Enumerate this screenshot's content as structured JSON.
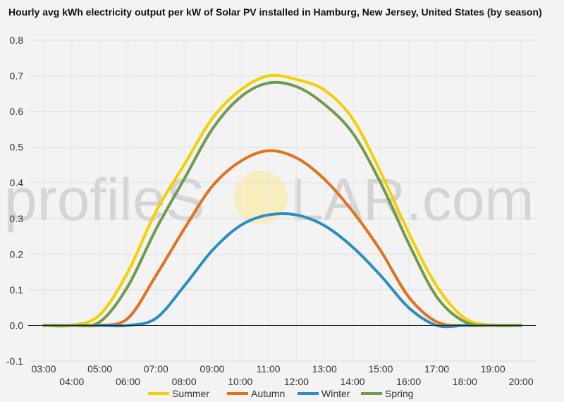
{
  "chart_data": {
    "type": "line",
    "title": "Hourly avg kWh electricity output per kW of Solar PV installed in Hamburg, New Jersey, United States (by season)",
    "xlabel": "",
    "ylabel": "",
    "ylim": [
      -0.1,
      0.8
    ],
    "yticks": [
      "-0.1",
      "0.0",
      "0.1",
      "0.2",
      "0.3",
      "0.4",
      "0.5",
      "0.6",
      "0.7",
      "0.8"
    ],
    "x": [
      "03:00",
      "04:00",
      "05:00",
      "06:00",
      "07:00",
      "08:00",
      "09:00",
      "10:00",
      "11:00",
      "12:00",
      "13:00",
      "14:00",
      "15:00",
      "16:00",
      "17:00",
      "18:00",
      "19:00",
      "20:00"
    ],
    "grid": true,
    "legend_position": "bottom",
    "series": [
      {
        "name": "Summer",
        "color": "#f5d000",
        "values": [
          0.0,
          0.0,
          0.03,
          0.15,
          0.32,
          0.45,
          0.58,
          0.66,
          0.7,
          0.69,
          0.66,
          0.58,
          0.43,
          0.26,
          0.11,
          0.02,
          0.0,
          0.0
        ]
      },
      {
        "name": "Autumn",
        "color": "#e2711d",
        "values": [
          0.0,
          0.0,
          0.0,
          0.02,
          0.14,
          0.27,
          0.39,
          0.46,
          0.49,
          0.47,
          0.41,
          0.32,
          0.21,
          0.08,
          0.01,
          0.0,
          0.0,
          0.0
        ]
      },
      {
        "name": "Winter",
        "color": "#2a8fc0",
        "values": [
          0.0,
          0.0,
          0.0,
          0.0,
          0.02,
          0.11,
          0.21,
          0.28,
          0.31,
          0.31,
          0.28,
          0.22,
          0.14,
          0.05,
          0.0,
          0.0,
          0.0,
          0.0
        ]
      },
      {
        "name": "Spring",
        "color": "#6e9b4e",
        "values": [
          0.0,
          0.0,
          0.01,
          0.11,
          0.27,
          0.41,
          0.55,
          0.64,
          0.68,
          0.67,
          0.62,
          0.54,
          0.4,
          0.23,
          0.08,
          0.01,
          0.0,
          0.0
        ]
      }
    ]
  },
  "watermark": {
    "left": "profileS",
    "right": "LAR.com"
  }
}
